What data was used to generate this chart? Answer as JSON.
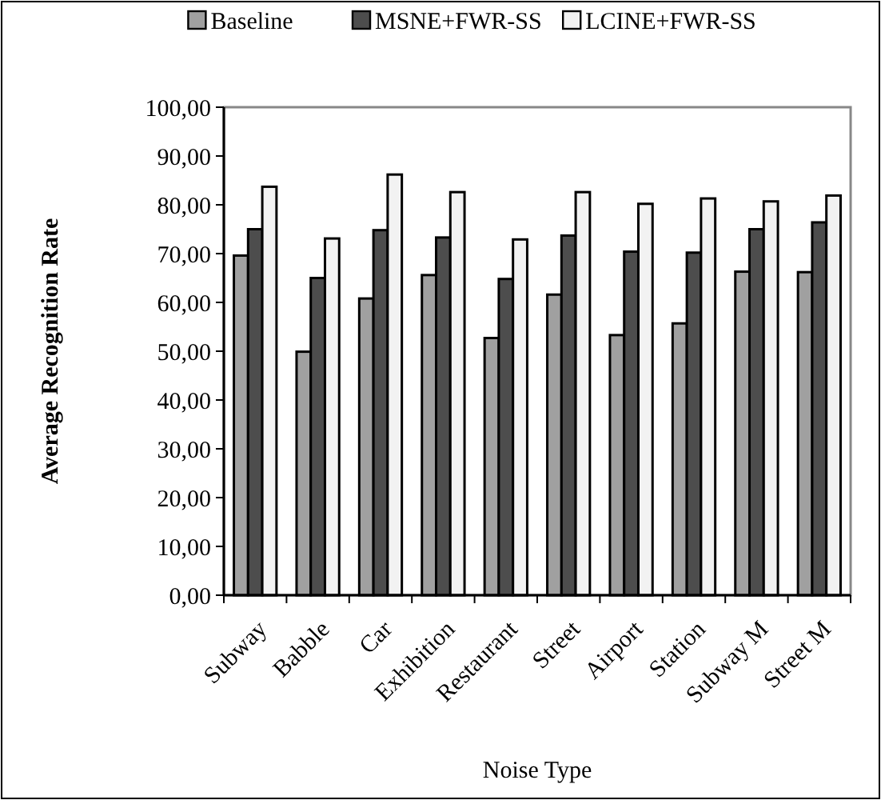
{
  "chart_data": {
    "type": "bar",
    "xlabel": "Noise Type",
    "ylabel": "Average Recognition Rate",
    "categories": [
      "Subway",
      "Babble",
      "Car",
      "Exhibition",
      "Restaurant",
      "Street",
      "Airport",
      "Station",
      "Subway M",
      "Street M"
    ],
    "series": [
      {
        "name": "Baseline",
        "color": "#a0a0a0",
        "values": [
          69.6,
          49.9,
          60.8,
          65.6,
          52.7,
          61.6,
          53.3,
          55.7,
          66.3,
          66.2
        ]
      },
      {
        "name": "MSNE+FWR-SS",
        "color": "#4d4d4d",
        "values": [
          75.0,
          65.0,
          74.8,
          73.3,
          64.8,
          73.7,
          70.4,
          70.2,
          75.0,
          76.4
        ]
      },
      {
        "name": "LCINE+FWR-SS",
        "color": "#f2f2f2",
        "values": [
          83.7,
          73.1,
          86.2,
          82.6,
          72.9,
          82.6,
          80.2,
          81.3,
          80.7,
          81.9
        ]
      }
    ],
    "ylim": [
      0,
      100
    ],
    "yticks": [
      {
        "value": 0,
        "label": "0,00"
      },
      {
        "value": 10,
        "label": "10,00"
      },
      {
        "value": 20,
        "label": "20,00"
      },
      {
        "value": 30,
        "label": "30,00"
      },
      {
        "value": 40,
        "label": "40,00"
      },
      {
        "value": 50,
        "label": "50,00"
      },
      {
        "value": 60,
        "label": "60,00"
      },
      {
        "value": 70,
        "label": "70,00"
      },
      {
        "value": 80,
        "label": "80,00"
      },
      {
        "value": 90,
        "label": "90,00"
      },
      {
        "value": 100,
        "label": "100,00"
      }
    ],
    "grid": false,
    "legend": "top"
  }
}
